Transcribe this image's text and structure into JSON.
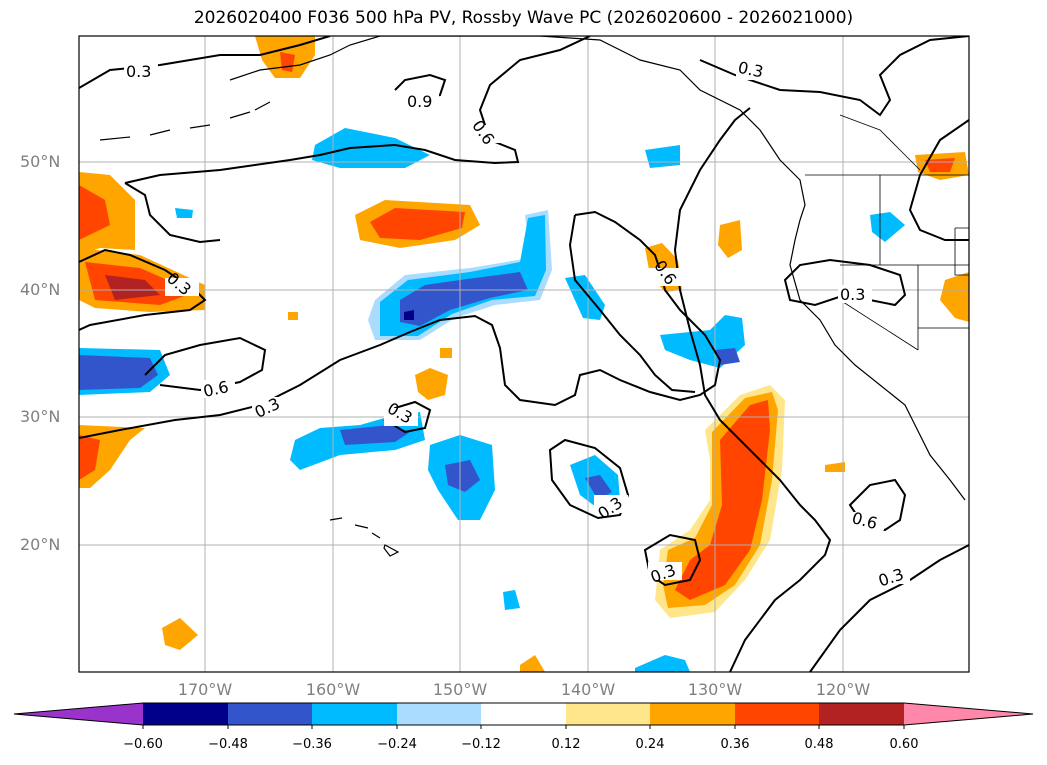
{
  "title": "2026020400 F036 500 hPa PV, Rossby Wave PC (2026020600 - 2026021000)",
  "lat_labels": [
    "50°N",
    "40°N",
    "30°N",
    "20°N"
  ],
  "lon_labels": [
    "170°W",
    "160°W",
    "150°W",
    "140°W",
    "130°W",
    "120°W"
  ],
  "contour_labels": [
    "0.3",
    "0.9",
    "0.6",
    "0.3",
    "0.3",
    "0.6",
    "0.6",
    "0.3",
    "0.3",
    "0.3",
    "0.3",
    "0.6",
    "0.3",
    "0.3"
  ],
  "colorbar": {
    "ticks": [
      "−0.60",
      "−0.48",
      "−0.36",
      "−0.24",
      "−0.12",
      "0.12",
      "0.24",
      "0.36",
      "0.48",
      "0.60"
    ],
    "colors": [
      "#9933cc",
      "#00008b",
      "#3355cc",
      "#00bbff",
      "#aadcff",
      "#ffffff",
      "#ffe68a",
      "#ffa500",
      "#ff4500",
      "#b22222",
      "#ff88aa"
    ]
  }
}
